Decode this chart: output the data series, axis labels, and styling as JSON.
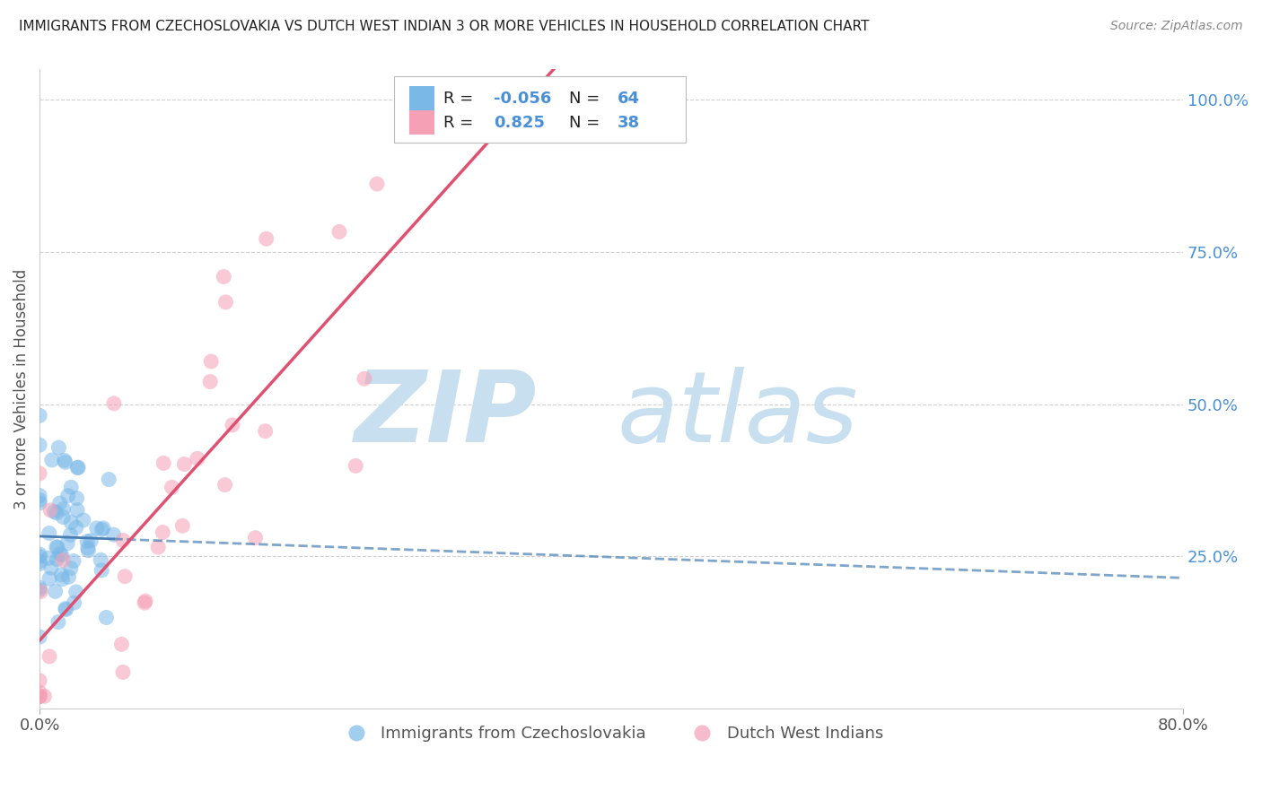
{
  "title": "IMMIGRANTS FROM CZECHOSLOVAKIA VS DUTCH WEST INDIAN 3 OR MORE VEHICLES IN HOUSEHOLD CORRELATION CHART",
  "source": "Source: ZipAtlas.com",
  "ylabel": "3 or more Vehicles in Household",
  "xmin": 0.0,
  "xmax": 0.8,
  "ymin": 0.0,
  "ymax": 1.05,
  "y_ticks_right": [
    0.25,
    0.5,
    0.75,
    1.0
  ],
  "y_tick_labels_right": [
    "25.0%",
    "50.0%",
    "75.0%",
    "100.0%"
  ],
  "legend_labels": [
    "Immigrants from Czechoslovakia",
    "Dutch West Indians"
  ],
  "blue_color": "#7ab8e8",
  "pink_color": "#f5a0b5",
  "blue_line_color": "#4a7fb5",
  "pink_line_color": "#e05070",
  "blue_R": -0.056,
  "blue_N": 64,
  "pink_R": 0.825,
  "pink_N": 38,
  "watermark_zip_color": "#c8dff0",
  "watermark_atlas_color": "#c8dff0",
  "background_color": "#ffffff",
  "grid_color": "#cccccc",
  "title_color": "#222222",
  "source_color": "#888888",
  "axis_label_color": "#555555",
  "right_axis_color": "#4a90d9",
  "legend_text_color": "#222222",
  "legend_value_color": "#4a90d9"
}
